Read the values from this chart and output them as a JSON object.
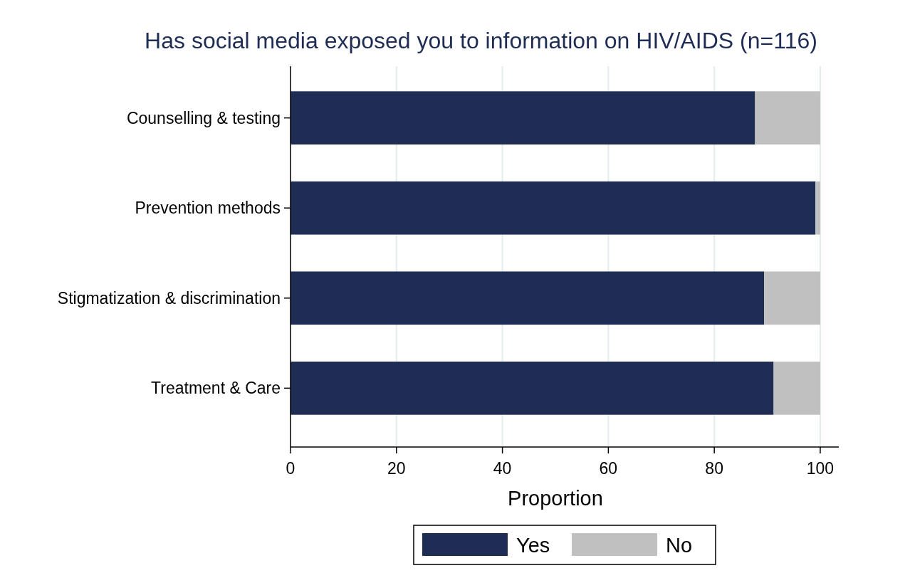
{
  "chart_data": {
    "type": "bar",
    "orientation": "horizontal",
    "stacked": true,
    "title": "Has social media exposed you to information on HIV/AIDS (n=116)",
    "xlabel": "Proportion",
    "categories": [
      "Counselling & testing",
      "Prevention methods",
      "Stigmatization & discrimination",
      "Treatment & Care"
    ],
    "series": [
      {
        "name": "Yes",
        "color": "#1f2d55",
        "values": [
          87.7,
          99.1,
          89.4,
          91.2
        ]
      },
      {
        "name": "No",
        "color": "#c0c0c0",
        "values": [
          12.3,
          0.9,
          10.6,
          8.8
        ]
      }
    ],
    "xlim": [
      0,
      103.5
    ],
    "xticks": [
      0,
      20,
      40,
      60,
      80,
      100
    ],
    "grid": "x",
    "legend": "bottom"
  }
}
